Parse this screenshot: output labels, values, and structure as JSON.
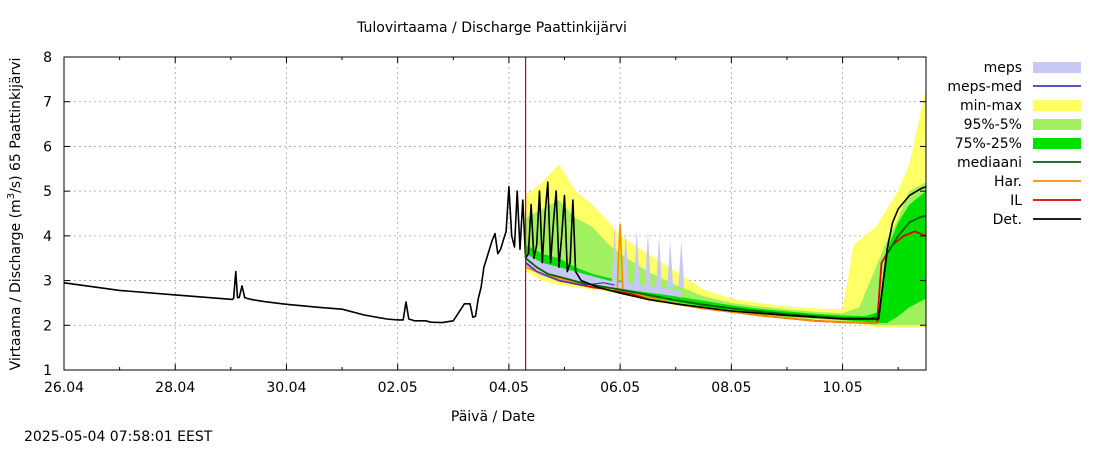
{
  "chart_data": {
    "type": "line",
    "title": "Tulovirtaama / Discharge  Paattinkijärvi",
    "xlabel": "Päivä / Date",
    "ylabel_parts": [
      "Virtaama / Discharge (m",
      "3",
      "/s)  65 Paattinkijärvi"
    ],
    "timestamp": "2025-05-04  07:58:01 EEST",
    "xlim": [
      0,
      15.5
    ],
    "ylim": [
      1,
      8
    ],
    "x_ticks": [
      {
        "x": 0,
        "label": "26.04"
      },
      {
        "x": 2,
        "label": "28.04"
      },
      {
        "x": 4,
        "label": "30.04"
      },
      {
        "x": 6,
        "label": "02.05"
      },
      {
        "x": 8,
        "label": "04.05"
      },
      {
        "x": 10,
        "label": "06.05"
      },
      {
        "x": 12,
        "label": "08.05"
      },
      {
        "x": 14,
        "label": "10.05"
      }
    ],
    "y_ticks": [
      1,
      2,
      3,
      4,
      5,
      6,
      7,
      8
    ],
    "x_unit": "days since 26.04",
    "forecast_start": 8.3,
    "legend": [
      {
        "label": "meps",
        "kind": "band",
        "color": "#c8c8f4"
      },
      {
        "label": "meps-med",
        "kind": "line",
        "color": "#3c3cc8"
      },
      {
        "label": "min-max",
        "kind": "band",
        "color": "#ffff66"
      },
      {
        "label": "95%-5%",
        "kind": "band",
        "color": "#a0f060"
      },
      {
        "label": "75%-25%",
        "kind": "band",
        "color": "#00e000"
      },
      {
        "label": "mediaani",
        "kind": "line",
        "color": "#006400"
      },
      {
        "label": "Har.",
        "kind": "line",
        "color": "#ff8c00"
      },
      {
        "label": "IL",
        "kind": "line",
        "color": "#e00000"
      },
      {
        "label": "Det.",
        "kind": "line",
        "color": "#000000"
      }
    ],
    "series": [
      {
        "name": "Det. (observed)",
        "color": "#000000",
        "width": 1.6,
        "x": [
          0,
          1,
          2,
          3.03,
          3.05,
          3.09,
          3.12,
          3.15,
          3.2,
          3.25,
          3.3,
          3.4,
          3.6,
          4,
          4.6,
          5,
          5.4,
          5.8,
          6.0,
          6.1,
          6.15,
          6.2,
          6.3,
          6.5,
          6.6,
          6.8,
          7,
          7.2,
          7.3,
          7.35,
          7.4,
          7.45,
          7.5,
          7.55,
          7.6,
          7.7,
          7.75,
          7.8,
          7.85,
          7.9,
          7.95,
          8.0,
          8.05,
          8.1,
          8.15,
          8.2,
          8.25,
          8.3,
          8.35,
          8.4,
          8.45,
          8.5,
          8.55,
          8.6,
          8.65,
          8.7,
          8.75,
          8.8,
          8.85,
          8.9,
          8.95,
          9.0,
          9.05,
          9.1,
          9.15,
          9.2,
          9.3,
          9.4,
          9.6,
          10,
          10.5,
          11,
          11.5,
          12,
          12.5,
          13,
          13.5,
          14,
          14.5,
          14.65,
          14.8,
          14.9,
          15.0,
          15.2,
          15.4,
          15.5
        ],
        "y": [
          2.95,
          2.78,
          2.68,
          2.58,
          2.6,
          3.2,
          2.62,
          2.62,
          2.88,
          2.62,
          2.6,
          2.57,
          2.53,
          2.47,
          2.4,
          2.36,
          2.23,
          2.14,
          2.12,
          2.12,
          2.52,
          2.14,
          2.1,
          2.1,
          2.07,
          2.06,
          2.1,
          2.48,
          2.48,
          2.18,
          2.2,
          2.6,
          2.85,
          3.3,
          3.5,
          3.9,
          4.05,
          3.6,
          3.7,
          3.9,
          4.1,
          5.1,
          4.0,
          3.75,
          5.0,
          3.7,
          4.8,
          3.5,
          3.6,
          4.7,
          3.5,
          3.8,
          5.0,
          3.4,
          4.5,
          5.2,
          3.4,
          4.3,
          5.0,
          3.3,
          4.0,
          4.9,
          3.2,
          3.4,
          4.8,
          3.2,
          3.0,
          2.95,
          2.85,
          2.72,
          2.58,
          2.48,
          2.4,
          2.32,
          2.27,
          2.22,
          2.18,
          2.14,
          2.14,
          2.14,
          3.7,
          4.3,
          4.6,
          4.9,
          5.05,
          5.1
        ]
      },
      {
        "name": "mediaani",
        "color": "#006400",
        "width": 1.8,
        "x": [
          8.3,
          8.5,
          8.7,
          9.0,
          9.3,
          9.6,
          10,
          10.5,
          11,
          11.5,
          12,
          12.5,
          13,
          13.5,
          14,
          14.5,
          14.65,
          14.8,
          15.0,
          15.2,
          15.4,
          15.5
        ],
        "y": [
          3.5,
          3.3,
          3.15,
          3.05,
          2.95,
          2.88,
          2.8,
          2.68,
          2.56,
          2.46,
          2.38,
          2.31,
          2.25,
          2.2,
          2.16,
          2.15,
          2.2,
          3.6,
          4.0,
          4.3,
          4.42,
          4.45
        ]
      },
      {
        "name": "meps-med",
        "color": "#3c3cc8",
        "width": 1.2,
        "x": [
          8.3,
          8.5,
          8.7,
          8.9,
          9.1,
          9.3,
          9.5,
          9.7,
          9.9
        ],
        "y": [
          3.4,
          3.2,
          3.1,
          3.0,
          2.95,
          2.9,
          2.92,
          2.95,
          2.9
        ]
      },
      {
        "name": "Har.",
        "color": "#ff8c00",
        "width": 1.6,
        "x": [
          8.3,
          8.6,
          9.0,
          9.5,
          9.8,
          9.95,
          10.0,
          10.05,
          10.2,
          10.5,
          11,
          11.5,
          12,
          12.5,
          13,
          13.5,
          14,
          14.5,
          14.65
        ],
        "y": [
          3.3,
          3.15,
          3.02,
          2.9,
          2.8,
          2.8,
          4.25,
          2.8,
          2.75,
          2.62,
          2.48,
          2.38,
          2.3,
          2.22,
          2.16,
          2.1,
          2.07,
          2.05,
          2.05
        ]
      },
      {
        "name": "IL",
        "color": "#e00000",
        "width": 1.8,
        "x": [
          8.3,
          8.5,
          8.7,
          8.9,
          9.1,
          9.3,
          9.5,
          9.7,
          10,
          10.5,
          11,
          11.5,
          12,
          12.5,
          13,
          13.5,
          14,
          14.5,
          14.62,
          14.7,
          14.9,
          15.1,
          15.3,
          15.5
        ],
        "y": [
          3.4,
          3.2,
          3.1,
          3.0,
          2.95,
          2.9,
          2.85,
          2.82,
          2.75,
          2.62,
          2.48,
          2.38,
          2.3,
          2.22,
          2.16,
          2.1,
          2.07,
          2.05,
          2.05,
          3.4,
          3.8,
          4.0,
          4.1,
          4.0
        ]
      }
    ],
    "bands": [
      {
        "name": "min-max",
        "color": "#ffff66",
        "x": [
          8.3,
          8.6,
          8.9,
          9.2,
          9.5,
          9.8,
          10.0,
          10.5,
          11,
          11.5,
          12,
          12.5,
          13,
          13.5,
          14,
          14.2,
          14.4,
          14.6,
          14.8,
          15.0,
          15.2,
          15.5
        ],
        "low": [
          3.2,
          3.0,
          2.9,
          2.85,
          2.8,
          2.75,
          2.7,
          2.55,
          2.45,
          2.35,
          2.28,
          2.22,
          2.16,
          2.12,
          2.07,
          2.05,
          2.0,
          1.95,
          1.95,
          1.95,
          1.95,
          1.95
        ],
        "high": [
          4.9,
          5.2,
          5.6,
          5.0,
          4.7,
          4.3,
          4.0,
          3.6,
          3.2,
          2.8,
          2.6,
          2.5,
          2.42,
          2.38,
          2.35,
          3.8,
          4.0,
          4.2,
          4.6,
          5.0,
          5.6,
          7.3
        ]
      },
      {
        "name": "95%-5%",
        "color": "#a0f060",
        "x": [
          8.3,
          8.6,
          8.9,
          9.2,
          9.5,
          9.8,
          10.0,
          10.5,
          11,
          11.5,
          12,
          12.5,
          13,
          13.5,
          14,
          14.3,
          14.6,
          14.8,
          15.0,
          15.2,
          15.5
        ],
        "low": [
          3.3,
          3.1,
          3.0,
          2.9,
          2.85,
          2.8,
          2.75,
          2.6,
          2.48,
          2.38,
          2.3,
          2.24,
          2.18,
          2.14,
          2.1,
          2.05,
          2.0,
          2.0,
          2.0,
          2.0,
          2.0
        ],
        "high": [
          4.4,
          4.6,
          4.8,
          4.4,
          4.2,
          3.8,
          3.6,
          3.2,
          2.9,
          2.65,
          2.5,
          2.42,
          2.36,
          2.3,
          2.27,
          2.4,
          3.3,
          3.9,
          4.4,
          5.0,
          5.2
        ]
      },
      {
        "name": "75%-25%",
        "color": "#00e000",
        "x": [
          8.3,
          8.6,
          8.9,
          9.2,
          9.5,
          10.0,
          10.5,
          11,
          11.5,
          12,
          12.5,
          13,
          13.5,
          14,
          14.4,
          14.65,
          14.8,
          15.0,
          15.2,
          15.5
        ],
        "low": [
          3.4,
          3.2,
          3.05,
          2.95,
          2.88,
          2.75,
          2.64,
          2.52,
          2.42,
          2.34,
          2.28,
          2.22,
          2.17,
          2.12,
          2.08,
          2.05,
          2.05,
          2.2,
          2.4,
          2.6
        ],
        "high": [
          3.8,
          3.6,
          3.5,
          3.3,
          3.15,
          3.0,
          2.82,
          2.65,
          2.55,
          2.45,
          2.37,
          2.31,
          2.26,
          2.22,
          2.2,
          2.3,
          3.7,
          4.3,
          4.7,
          5.0
        ]
      },
      {
        "name": "meps",
        "color": "#c8c8f4",
        "x": [
          8.3,
          8.6,
          8.9,
          9.2,
          9.5,
          9.8,
          10.1,
          10.4,
          10.7,
          11.0,
          11.1
        ],
        "low": [
          3.3,
          3.1,
          3.0,
          2.95,
          2.9,
          2.85,
          2.8,
          2.75,
          2.7,
          2.65,
          2.62
        ],
        "high": [
          3.6,
          3.4,
          3.3,
          3.2,
          3.1,
          3.0,
          2.95,
          2.9,
          2.85,
          2.8,
          2.75
        ]
      }
    ],
    "meps_spikes": [
      {
        "x": 9.9,
        "y": 4.2
      },
      {
        "x": 10.1,
        "y": 4.1
      },
      {
        "x": 10.3,
        "y": 4.15
      },
      {
        "x": 10.5,
        "y": 4.1
      },
      {
        "x": 10.7,
        "y": 4.0
      },
      {
        "x": 10.9,
        "y": 3.9
      },
      {
        "x": 11.1,
        "y": 3.9
      }
    ]
  }
}
